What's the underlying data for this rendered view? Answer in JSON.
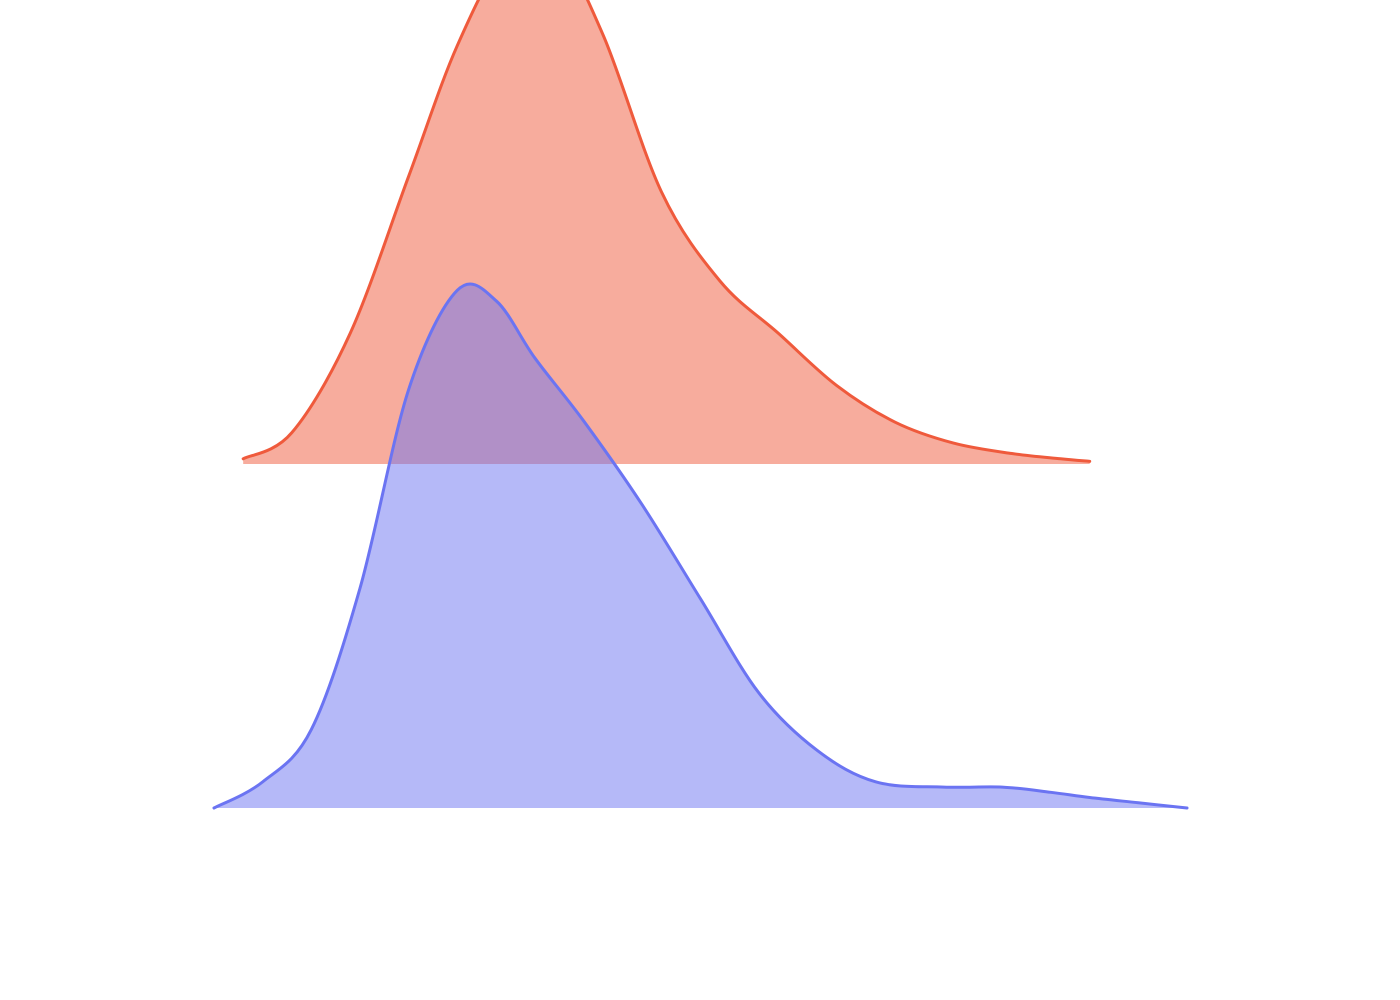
{
  "chart_data": {
    "type": "area",
    "title": "",
    "xlabel": "",
    "ylabel": "",
    "grid": false,
    "axes_visible": false,
    "legend": "none",
    "xlim": [
      -3.0,
      7.0
    ],
    "ylim": [
      0,
      1
    ],
    "series": [
      {
        "color": "#EF5A3C",
        "baseline": 0.5,
        "height_scale": 0.76,
        "x": [
          -2.7,
          -2.2,
          -1.6,
          -1.0,
          -0.5,
          0.0,
          0.5,
          1.0,
          1.6,
          2.2,
          2.8,
          3.4,
          4.0,
          4.6,
          5.2,
          5.7,
          6.0
        ],
        "density": [
          0.01,
          0.06,
          0.25,
          0.55,
          0.8,
          0.97,
          0.99,
          0.82,
          0.52,
          0.35,
          0.25,
          0.15,
          0.08,
          0.04,
          0.02,
          0.01,
          0.005
        ]
      },
      {
        "color": "#6B74F2",
        "baseline": 0.0,
        "height_scale": 0.76,
        "x": [
          -3.0,
          -2.5,
          -2.0,
          -1.5,
          -1.0,
          -0.5,
          -0.1,
          0.3,
          0.8,
          1.4,
          2.0,
          2.6,
          3.2,
          3.8,
          4.5,
          5.1,
          5.6,
          6.0,
          6.5,
          7.0
        ],
        "density": [
          0.0,
          0.05,
          0.15,
          0.42,
          0.8,
          0.99,
          0.97,
          0.86,
          0.74,
          0.58,
          0.4,
          0.22,
          0.11,
          0.05,
          0.04,
          0.04,
          0.03,
          0.02,
          0.01,
          0.0
        ]
      }
    ]
  }
}
